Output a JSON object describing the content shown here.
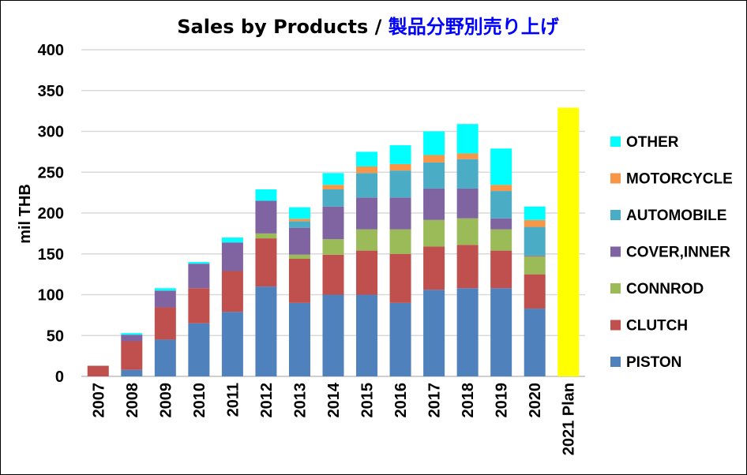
{
  "chart_data": {
    "type": "bar",
    "stacked": true,
    "title": "Sales by Products / ",
    "title_jp": "製品分野別売り上げ",
    "xlabel": "",
    "ylabel": "mil THB",
    "ylim": [
      0,
      400
    ],
    "yticks": [
      0,
      50,
      100,
      150,
      200,
      250,
      300,
      350,
      400
    ],
    "grid": true,
    "legend_position": "right",
    "categories": [
      "2007",
      "2008",
      "2009",
      "2010",
      "2011",
      "2012",
      "2013",
      "2014",
      "2015",
      "2016",
      "2017",
      "2018",
      "2019",
      "2020",
      "2021 Plan"
    ],
    "series": [
      {
        "name": "PISTON",
        "color": "#4F81BD",
        "values": [
          0,
          8,
          45,
          65,
          79,
          110,
          90,
          100,
          100,
          90,
          106,
          108,
          108,
          83,
          0
        ]
      },
      {
        "name": "CLUTCH",
        "color": "#C0504D",
        "values": [
          13,
          35,
          39.5,
          43,
          50,
          59,
          54,
          49,
          54,
          60,
          53,
          53,
          46,
          42,
          0
        ]
      },
      {
        "name": "CONNROD",
        "color": "#9BBB59",
        "values": [
          0,
          0,
          0,
          0,
          0,
          6,
          5,
          19,
          26,
          30,
          32.5,
          32.5,
          26,
          22,
          0
        ]
      },
      {
        "name": "COVER,INNER",
        "color": "#8064A2",
        "values": [
          0,
          8,
          20.5,
          30,
          35,
          40,
          33,
          40,
          39,
          39,
          38.5,
          36.5,
          13.5,
          1,
          0
        ]
      },
      {
        "name": "AUTOMOBILE",
        "color": "#4BACC6",
        "values": [
          0,
          0,
          0,
          0,
          0,
          0,
          8,
          21,
          30,
          33,
          32,
          36,
          33.5,
          35,
          0
        ]
      },
      {
        "name": "MOTORCYCLE",
        "color": "#F79646",
        "values": [
          0,
          0,
          0,
          0,
          0,
          0,
          3,
          5.5,
          8,
          8,
          9,
          7,
          7.5,
          8.5,
          0
        ]
      },
      {
        "name": "OTHER",
        "color": "#00FFFF",
        "values": [
          0,
          2,
          3,
          2,
          6,
          14,
          14,
          14.5,
          18,
          23,
          29,
          36,
          44.5,
          16.5,
          0
        ]
      },
      {
        "name": "2021 Plan",
        "color": "#FFFF00",
        "values": [
          0,
          0,
          0,
          0,
          0,
          0,
          0,
          0,
          0,
          0,
          0,
          0,
          0,
          0,
          329
        ],
        "in_legend": false
      }
    ]
  },
  "colors": {
    "title_jp": "#0000FF",
    "grid": "#D9D9D9"
  }
}
